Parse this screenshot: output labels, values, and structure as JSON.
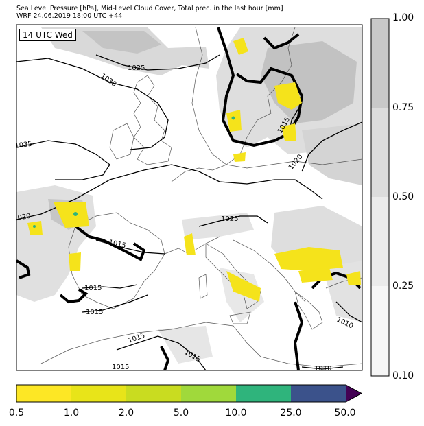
{
  "header": {
    "line1": "Sea Level Pressure [hPa], Mid-Level Cloud Cover, Total prec. in the last hour [mm]",
    "line2": "WRF 24.06.2019 18:00 UTC +44"
  },
  "map": {
    "time_label": "14 UTC Wed",
    "isobar_labels": [
      "1025",
      "1030",
      "1035",
      "1020",
      "1015",
      "1025",
      "1015",
      "1015",
      "1015",
      "1015",
      "1015",
      "1020",
      "1010",
      "1015",
      "1010"
    ],
    "colors": {
      "ocean": "#ffffff",
      "cloud_light": "#e6e6e6",
      "cloud_mid": "#cccccc",
      "cloud_dark": "#b3b3b3",
      "coast": "#555555",
      "isobar": "#000000"
    }
  },
  "cloud_colorbar": {
    "ticks": [
      "1.00",
      "0.75",
      "0.50",
      "0.25",
      "0.10"
    ],
    "colors": [
      "#c8c8c8",
      "#dcdcdc",
      "#ebebeb",
      "#f6f6f6"
    ]
  },
  "precip_colorbar": {
    "ticks": [
      "0.5",
      "1.0",
      "2.0",
      "5.0",
      "10.0",
      "25.0",
      "50.0"
    ],
    "colors": [
      "#fde725",
      "#e8e419",
      "#c9dc20",
      "#a0d93b",
      "#5ec962",
      "#2fb47c",
      "#3b528b",
      "#440154"
    ]
  }
}
